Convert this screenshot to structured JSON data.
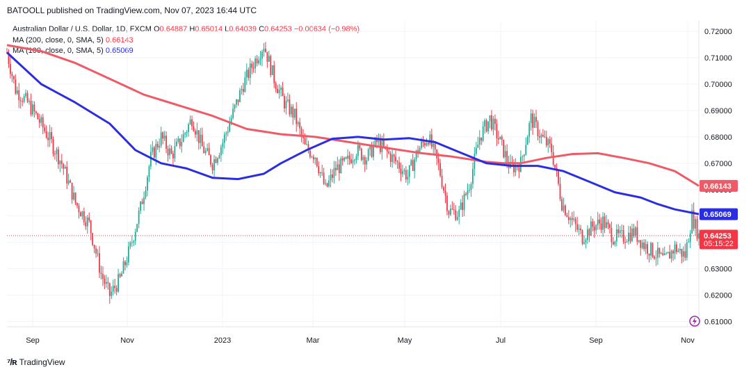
{
  "header": {
    "published": "BATOOLL published on TradingView.com, Nov 07, 2023 16:44 UTC"
  },
  "legend": {
    "symbol": "Australian Dollar / U.S. Dollar, 1D, FXCM",
    "o_label": "O",
    "o_value": "0.64887",
    "h_label": "H",
    "h_value": "0.65014",
    "l_label": "L",
    "l_value": "0.64039",
    "c_label": "C",
    "c_value": "0.64253",
    "change": "−0.00634 (−0.98%)",
    "ma200_label": "MA (200, close, 0, SMA, 5)",
    "ma200_value": "0.66143",
    "ma100_label": "MA (100, close, 0, SMA, 5)",
    "ma100_value": "0.65069"
  },
  "footer": {
    "brand": "TradingView"
  },
  "colors": {
    "up": "#22ab94",
    "down": "#f23645",
    "ma200": "#f05a66",
    "ma100": "#2a2ee0"
  },
  "chart_data": {
    "type": "candlestick",
    "title": "Australian Dollar / U.S. Dollar, 1D, FXCM",
    "y_ticks": [
      "0.72000",
      "0.71000",
      "0.70000",
      "0.69000",
      "0.68000",
      "0.67000",
      "0.66000",
      "0.65000",
      "0.64000",
      "0.63000",
      "0.62000",
      "0.61000"
    ],
    "ylim": [
      0.608,
      0.724
    ],
    "x_tick_labels": [
      "Sep",
      "Nov",
      "2023",
      "Mar",
      "May",
      "Jul",
      "Sep",
      "Nov"
    ],
    "price_tags": [
      {
        "name": "ma200",
        "value": "0.66143",
        "color": "#f05a66"
      },
      {
        "name": "ma100",
        "value": "0.65069",
        "color": "#2a2ee0"
      },
      {
        "name": "last",
        "value": "0.64253",
        "time": "05:15:22",
        "color": "#f23645"
      }
    ],
    "ma200_points": [
      [
        0,
        0.7148
      ],
      [
        20,
        0.7125
      ],
      [
        40,
        0.708
      ],
      [
        60,
        0.702
      ],
      [
        80,
        0.696
      ],
      [
        100,
        0.692
      ],
      [
        120,
        0.688
      ],
      [
        140,
        0.683
      ],
      [
        160,
        0.681
      ],
      [
        180,
        0.68
      ],
      [
        200,
        0.678
      ],
      [
        220,
        0.676
      ],
      [
        240,
        0.674
      ],
      [
        260,
        0.6725
      ],
      [
        280,
        0.6705
      ],
      [
        290,
        0.67
      ],
      [
        300,
        0.67
      ],
      [
        315,
        0.672
      ],
      [
        330,
        0.6735
      ],
      [
        345,
        0.6738
      ],
      [
        360,
        0.672
      ],
      [
        375,
        0.67
      ],
      [
        390,
        0.667
      ],
      [
        404,
        0.6614
      ]
    ],
    "ma100_points": [
      [
        0,
        0.712
      ],
      [
        20,
        0.7
      ],
      [
        40,
        0.693
      ],
      [
        60,
        0.685
      ],
      [
        75,
        0.675
      ],
      [
        90,
        0.67
      ],
      [
        105,
        0.668
      ],
      [
        120,
        0.6645
      ],
      [
        135,
        0.664
      ],
      [
        150,
        0.666
      ],
      [
        160,
        0.67
      ],
      [
        175,
        0.675
      ],
      [
        190,
        0.6793
      ],
      [
        205,
        0.68
      ],
      [
        220,
        0.679
      ],
      [
        235,
        0.6795
      ],
      [
        250,
        0.678
      ],
      [
        265,
        0.674
      ],
      [
        280,
        0.67
      ],
      [
        295,
        0.669
      ],
      [
        310,
        0.669
      ],
      [
        325,
        0.667
      ],
      [
        340,
        0.663
      ],
      [
        355,
        0.659
      ],
      [
        370,
        0.657
      ],
      [
        380,
        0.6545
      ],
      [
        390,
        0.6525
      ],
      [
        404,
        0.6507
      ]
    ],
    "close_points": [
      [
        0,
        0.712
      ],
      [
        5,
        0.698
      ],
      [
        12,
        0.693
      ],
      [
        18,
        0.687
      ],
      [
        25,
        0.679
      ],
      [
        32,
        0.67
      ],
      [
        40,
        0.655
      ],
      [
        48,
        0.647
      ],
      [
        55,
        0.628
      ],
      [
        60,
        0.62
      ],
      [
        66,
        0.626
      ],
      [
        72,
        0.638
      ],
      [
        78,
        0.653
      ],
      [
        84,
        0.672
      ],
      [
        90,
        0.68
      ],
      [
        96,
        0.673
      ],
      [
        102,
        0.679
      ],
      [
        108,
        0.687
      ],
      [
        114,
        0.676
      ],
      [
        120,
        0.67
      ],
      [
        126,
        0.678
      ],
      [
        132,
        0.689
      ],
      [
        138,
        0.7
      ],
      [
        144,
        0.708
      ],
      [
        150,
        0.715
      ],
      [
        156,
        0.702
      ],
      [
        162,
        0.693
      ],
      [
        168,
        0.688
      ],
      [
        174,
        0.676
      ],
      [
        180,
        0.673
      ],
      [
        186,
        0.66
      ],
      [
        192,
        0.668
      ],
      [
        198,
        0.67
      ],
      [
        204,
        0.675
      ],
      [
        210,
        0.672
      ],
      [
        216,
        0.678
      ],
      [
        222,
        0.674
      ],
      [
        228,
        0.67
      ],
      [
        234,
        0.665
      ],
      [
        240,
        0.675
      ],
      [
        246,
        0.68
      ],
      [
        252,
        0.669
      ],
      [
        258,
        0.652
      ],
      [
        264,
        0.651
      ],
      [
        270,
        0.662
      ],
      [
        276,
        0.68
      ],
      [
        282,
        0.687
      ],
      [
        288,
        0.678
      ],
      [
        294,
        0.668
      ],
      [
        300,
        0.67
      ],
      [
        306,
        0.687
      ],
      [
        312,
        0.68
      ],
      [
        318,
        0.675
      ],
      [
        324,
        0.655
      ],
      [
        330,
        0.648
      ],
      [
        336,
        0.642
      ],
      [
        342,
        0.646
      ],
      [
        348,
        0.648
      ],
      [
        354,
        0.642
      ],
      [
        360,
        0.642
      ],
      [
        366,
        0.644
      ],
      [
        372,
        0.639
      ],
      [
        378,
        0.636
      ],
      [
        384,
        0.633
      ],
      [
        390,
        0.638
      ],
      [
        396,
        0.635
      ],
      [
        400,
        0.65
      ],
      [
        404,
        0.6425
      ]
    ]
  }
}
